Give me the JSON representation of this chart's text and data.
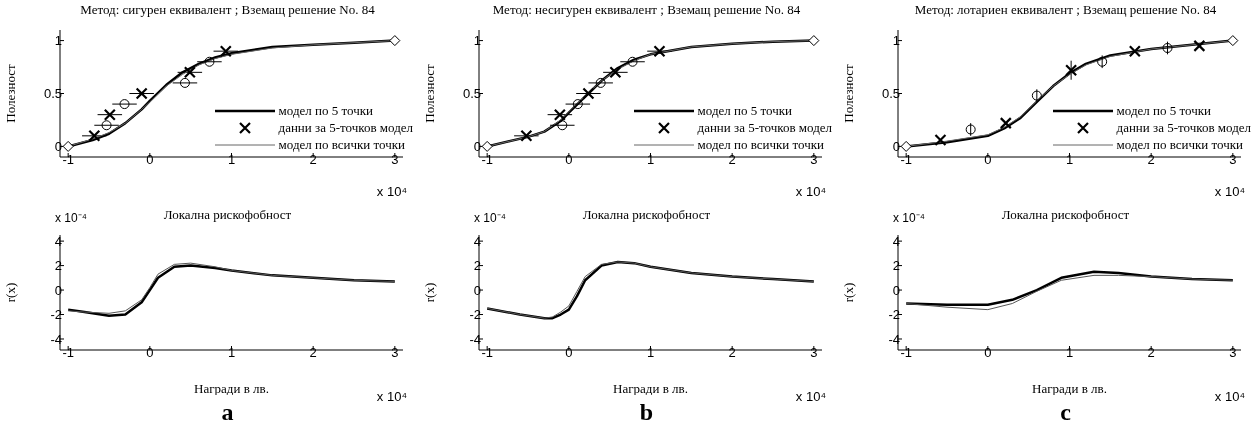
{
  "chart_data": [
    {
      "type": "line",
      "title": "Метод: сигурен еквивалент ; Вземащ решение No. 84",
      "ylabel": "Полезност",
      "annotations": [
        "x 10⁴"
      ],
      "xlim": [
        -1.1,
        3.1
      ],
      "xticks": [
        -1,
        0,
        1,
        2,
        3
      ],
      "ylim": [
        -0.1,
        1.1
      ],
      "yticks": [
        0,
        0.5,
        1
      ],
      "grid": false,
      "legend": "bottom right",
      "series": [
        {
          "name": "модел по 5 точки",
          "type": "line",
          "color": "#000000",
          "x": [
            -1,
            -0.7,
            -0.5,
            -0.3,
            -0.1,
            0,
            0.2,
            0.4,
            0.6,
            0.8,
            1,
            1.5,
            2,
            2.5,
            3
          ],
          "values": [
            0,
            0.06,
            0.12,
            0.22,
            0.35,
            0.43,
            0.58,
            0.7,
            0.78,
            0.84,
            0.88,
            0.94,
            0.96,
            0.98,
            1
          ]
        },
        {
          "name": "данни за 5-точков модел",
          "type": "scatter",
          "marker": "cross",
          "color": "#000000",
          "x": [
            -0.68,
            -0.49,
            -0.1,
            0.49,
            0.93
          ],
          "values": [
            0.1,
            0.3,
            0.5,
            0.7,
            0.9
          ],
          "xerrors": [
            0.15,
            0.15,
            0.15,
            0.15,
            0.15
          ]
        },
        {
          "name": "модел по всички точки",
          "type": "line",
          "color": "#666666",
          "x": [
            -1,
            -0.7,
            -0.5,
            -0.3,
            -0.1,
            0,
            0.2,
            0.4,
            0.6,
            0.8,
            1,
            1.5,
            2,
            2.5,
            3
          ],
          "values": [
            0,
            0.07,
            0.13,
            0.22,
            0.35,
            0.42,
            0.57,
            0.68,
            0.77,
            0.83,
            0.87,
            0.93,
            0.96,
            0.98,
            1
          ]
        },
        {
          "type": "scatter",
          "marker": "circle",
          "color": "#000000",
          "x": [
            -0.53,
            -0.31,
            0.43,
            0.73
          ],
          "values": [
            0.2,
            0.4,
            0.6,
            0.8
          ],
          "xerrors": [
            0.15,
            0.15,
            0.15,
            0.15
          ]
        },
        {
          "type": "scatter",
          "marker": "diamond",
          "color": "#000000",
          "x": [
            -1,
            3
          ],
          "values": [
            0,
            1
          ]
        }
      ]
    },
    {
      "type": "line",
      "title": "Метод: несигурен еквивалент ; Вземащ решение No. 84",
      "ylabel": "Полезност",
      "annotations": [
        "x 10⁴"
      ],
      "xlim": [
        -1.1,
        3.1
      ],
      "xticks": [
        -1,
        0,
        1,
        2,
        3
      ],
      "ylim": [
        -0.1,
        1.1
      ],
      "yticks": [
        0,
        0.5,
        1
      ],
      "grid": false,
      "legend": "bottom right",
      "series": [
        {
          "name": "модел по 5 точки",
          "type": "line",
          "color": "#000000",
          "x": [
            -1,
            -0.5,
            -0.3,
            -0.1,
            0,
            0.2,
            0.4,
            0.6,
            0.8,
            1,
            1.5,
            2,
            2.5,
            3
          ],
          "values": [
            0,
            0.09,
            0.14,
            0.24,
            0.32,
            0.47,
            0.62,
            0.74,
            0.82,
            0.87,
            0.94,
            0.97,
            0.99,
            1
          ]
        },
        {
          "name": "данни за 5-точков модел",
          "type": "scatter",
          "marker": "cross",
          "color": "#000000",
          "x": [
            -0.52,
            -0.11,
            0.24,
            0.57,
            1.11
          ],
          "values": [
            0.1,
            0.3,
            0.5,
            0.7,
            0.9
          ],
          "xerrors": [
            0.15,
            0.15,
            0.15,
            0.15,
            0.15
          ]
        },
        {
          "name": "модел по всички точки",
          "type": "line",
          "color": "#666666",
          "x": [
            -1,
            -0.5,
            -0.3,
            -0.1,
            0,
            0.2,
            0.4,
            0.6,
            0.8,
            1,
            1.5,
            2,
            2.5,
            3
          ],
          "values": [
            0,
            0.09,
            0.14,
            0.25,
            0.33,
            0.48,
            0.62,
            0.73,
            0.81,
            0.87,
            0.94,
            0.97,
            0.99,
            1
          ]
        },
        {
          "type": "scatter",
          "marker": "circle",
          "color": "#000000",
          "x": [
            -0.08,
            0.11,
            0.39,
            0.78
          ],
          "values": [
            0.2,
            0.4,
            0.6,
            0.8
          ],
          "xerrors": [
            0.15,
            0.15,
            0.15,
            0.15
          ]
        },
        {
          "type": "scatter",
          "marker": "diamond",
          "color": "#000000",
          "x": [
            -1,
            3
          ],
          "values": [
            0,
            1
          ]
        }
      ]
    },
    {
      "type": "line",
      "title": "Метод: лотариен еквивалент ; Вземащ решение No. 84",
      "ylabel": "Полезност",
      "annotations": [
        "x 10⁴"
      ],
      "xlim": [
        -1.1,
        3.1
      ],
      "xticks": [
        -1,
        0,
        1,
        2,
        3
      ],
      "ylim": [
        -0.1,
        1.1
      ],
      "yticks": [
        0,
        0.5,
        1
      ],
      "grid": false,
      "legend": "bottom right",
      "series": [
        {
          "name": "модел по 5 точки",
          "type": "line",
          "color": "#000000",
          "x": [
            -1,
            -0.5,
            0,
            0.2,
            0.4,
            0.6,
            0.8,
            1,
            1.2,
            1.5,
            2,
            2.5,
            3
          ],
          "values": [
            0,
            0.04,
            0.1,
            0.17,
            0.27,
            0.42,
            0.57,
            0.69,
            0.78,
            0.86,
            0.92,
            0.96,
            1
          ]
        },
        {
          "name": "данни за 5-точков модел",
          "type": "scatter",
          "marker": "cross",
          "color": "#000000",
          "x": [
            -0.58,
            0.22,
            1.02,
            1.8,
            2.59
          ],
          "values": [
            0.06,
            0.22,
            0.72,
            0.9,
            0.95
          ],
          "errors": [
            null,
            null,
            0.09,
            null,
            null
          ]
        },
        {
          "name": "модел по всички точки",
          "type": "line",
          "color": "#666666",
          "x": [
            -1,
            -0.5,
            0,
            0.2,
            0.4,
            0.6,
            0.8,
            1,
            1.2,
            1.5,
            2,
            2.5,
            3
          ],
          "values": [
            0,
            0.05,
            0.11,
            0.18,
            0.28,
            0.43,
            0.57,
            0.68,
            0.77,
            0.85,
            0.92,
            0.96,
            1
          ]
        },
        {
          "type": "scatter",
          "marker": "circle",
          "color": "#000000",
          "x": [
            -0.21,
            0.6,
            1.4,
            2.2
          ],
          "values": [
            0.16,
            0.48,
            0.8,
            0.93
          ],
          "errors": [
            0.06,
            0.06,
            0.06,
            0.06
          ]
        },
        {
          "type": "scatter",
          "marker": "diamond",
          "color": "#000000",
          "x": [
            -1,
            3
          ],
          "values": [
            0,
            1
          ]
        }
      ]
    },
    {
      "type": "line",
      "title": "Локална рискофобност",
      "xlabel": "Награди в лв.",
      "ylabel": "r(x)",
      "annotations": [
        "x 10⁻⁴",
        "x 10⁴",
        "a"
      ],
      "xlim": [
        -1.1,
        3.1
      ],
      "xticks": [
        -1,
        0,
        1,
        2,
        3
      ],
      "ylim": [
        -4.9,
        4.5
      ],
      "yticks": [
        -4,
        -2,
        0,
        2,
        4
      ],
      "grid": false,
      "series": [
        {
          "type": "line",
          "color": "#000000",
          "x": [
            -1,
            -0.8,
            -0.5,
            -0.3,
            -0.1,
            0,
            0.1,
            0.3,
            0.5,
            0.8,
            1,
            1.5,
            2,
            2.5,
            3
          ],
          "values": [
            -1.6,
            -1.8,
            -2.1,
            -2.0,
            -1.0,
            0,
            1.0,
            1.9,
            2.0,
            1.8,
            1.6,
            1.2,
            1.0,
            0.8,
            0.7
          ]
        },
        {
          "type": "line",
          "color": "#555555",
          "x": [
            -1,
            -0.8,
            -0.5,
            -0.3,
            -0.1,
            0,
            0.1,
            0.3,
            0.5,
            0.8,
            1,
            1.5,
            2,
            2.5,
            3
          ],
          "values": [
            -1.7,
            -1.8,
            -1.9,
            -1.7,
            -0.8,
            0.2,
            1.3,
            2.1,
            2.2,
            1.9,
            1.6,
            1.2,
            1.0,
            0.8,
            0.7
          ]
        }
      ]
    },
    {
      "type": "line",
      "title": "Локална рискофобност",
      "xlabel": "Награди в лв.",
      "ylabel": "r(x)",
      "annotations": [
        "x 10⁻⁴",
        "x 10⁴",
        "b"
      ],
      "xlim": [
        -1.1,
        3.1
      ],
      "xticks": [
        -1,
        0,
        1,
        2,
        3
      ],
      "ylim": [
        -4.9,
        4.5
      ],
      "yticks": [
        -4,
        -2,
        0,
        2,
        4
      ],
      "grid": false,
      "series": [
        {
          "type": "line",
          "color": "#000000",
          "x": [
            -1,
            -0.6,
            -0.3,
            -0.2,
            -0.1,
            0,
            0.1,
            0.2,
            0.4,
            0.6,
            0.8,
            1,
            1.5,
            2,
            2.5,
            3
          ],
          "values": [
            -1.5,
            -2.0,
            -2.3,
            -2.3,
            -2.0,
            -1.6,
            -0.5,
            0.8,
            2.0,
            2.3,
            2.2,
            1.9,
            1.4,
            1.1,
            0.9,
            0.7
          ]
        },
        {
          "type": "line",
          "color": "#555555",
          "x": [
            -1,
            -0.6,
            -0.3,
            -0.2,
            -0.1,
            0,
            0.1,
            0.2,
            0.4,
            0.6,
            0.8,
            1,
            1.5,
            2,
            2.5,
            3
          ],
          "values": [
            -1.5,
            -2.0,
            -2.3,
            -2.2,
            -1.8,
            -1.3,
            -0.1,
            1.1,
            2.1,
            2.3,
            2.2,
            1.9,
            1.4,
            1.1,
            0.9,
            0.7
          ]
        }
      ]
    },
    {
      "type": "line",
      "title": "Локална рискофобност",
      "xlabel": "Награди в лв.",
      "ylabel": "r(x)",
      "annotations": [
        "x 10⁻⁴",
        "x 10⁴",
        "c"
      ],
      "xlim": [
        -1.1,
        3.1
      ],
      "xticks": [
        -1,
        0,
        1,
        2,
        3
      ],
      "ylim": [
        -4.9,
        4.5
      ],
      "yticks": [
        -4,
        -2,
        0,
        2,
        4
      ],
      "grid": false,
      "series": [
        {
          "type": "line",
          "color": "#000000",
          "x": [
            -1,
            -0.5,
            0,
            0.3,
            0.6,
            0.9,
            1.3,
            1.6,
            2,
            2.5,
            3
          ],
          "values": [
            -1.1,
            -1.2,
            -1.2,
            -0.8,
            0,
            1.0,
            1.5,
            1.4,
            1.1,
            0.9,
            0.8
          ]
        },
        {
          "type": "line",
          "color": "#555555",
          "x": [
            -1,
            -0.5,
            0,
            0.3,
            0.6,
            0.9,
            1.3,
            1.6,
            2,
            2.5,
            3
          ],
          "values": [
            -1.1,
            -1.4,
            -1.6,
            -1.1,
            -0.1,
            0.8,
            1.2,
            1.2,
            1.1,
            0.9,
            0.8
          ]
        }
      ]
    }
  ]
}
